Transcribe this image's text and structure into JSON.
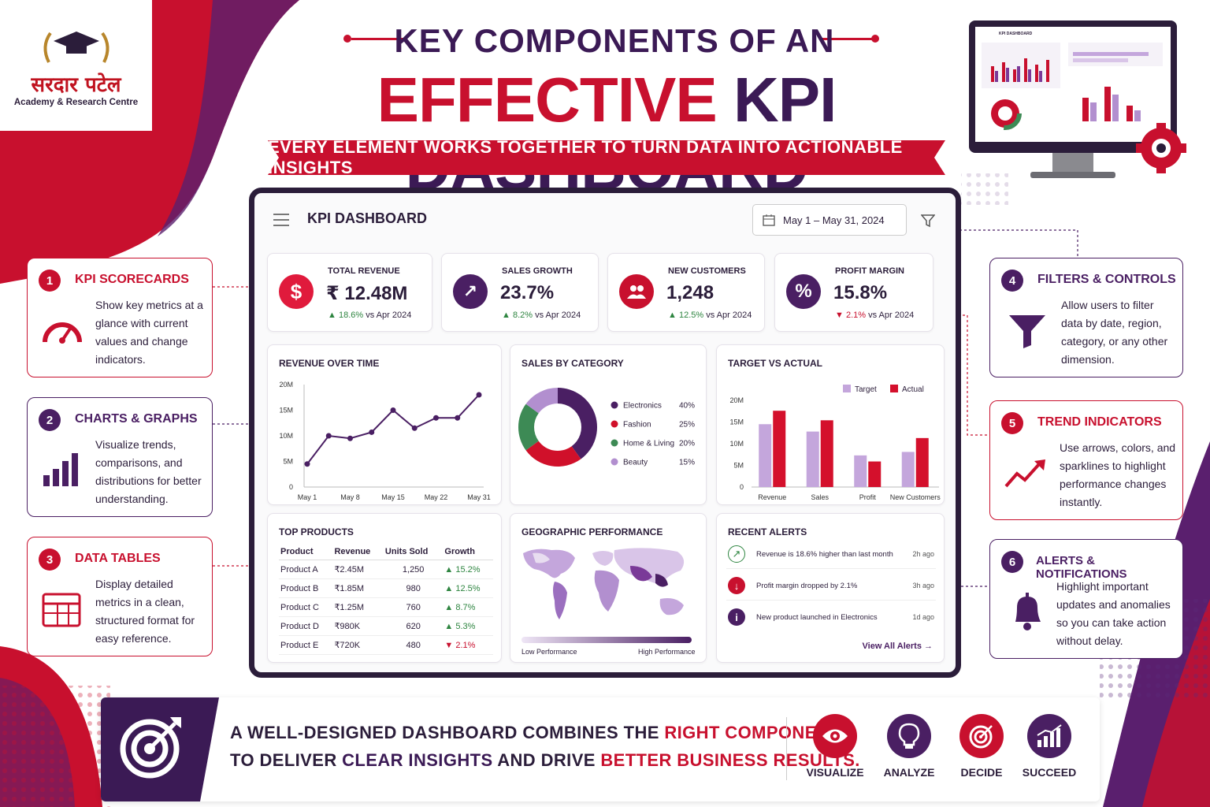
{
  "logo": {
    "hindi": "सरदार पटेल",
    "sub": "Academy & Research Centre"
  },
  "title": {
    "line1": "KEY COMPONENTS OF AN",
    "line2_red": "EFFECTIVE",
    "line2_purple": "KPI DASHBOARD",
    "ribbon": "EVERY ELEMENT WORKS TOGETHER TO TURN DATA INTO ACTIONABLE INSIGHTS"
  },
  "monitor": {
    "title": "KPI DASHBOARD"
  },
  "dashboard": {
    "title": "KPI DASHBOARD",
    "date_range": "May 1 – May 31, 2024",
    "kpis": [
      {
        "label": "TOTAL REVENUE",
        "icon": "$",
        "value": "₹ 12.48M",
        "change": "18.6%",
        "direction": "up",
        "vs": "vs Apr 2024",
        "color": "#e01a3c"
      },
      {
        "label": "SALES GROWTH",
        "icon": "↗",
        "value": "23.7%",
        "change": "8.2%",
        "direction": "up",
        "vs": "vs Apr 2024",
        "color": "#4a1f63"
      },
      {
        "label": "NEW CUSTOMERS",
        "icon": "👥",
        "value": "1,248",
        "change": "12.5%",
        "direction": "up",
        "vs": "vs Apr 2024",
        "color": "#c8102e"
      },
      {
        "label": "PROFIT MARGIN",
        "icon": "%",
        "value": "15.8%",
        "change": "2.1%",
        "direction": "down",
        "vs": "vs Apr 2024",
        "color": "#4a1f63"
      }
    ],
    "revenue_title": "REVENUE OVER TIME",
    "category_title": "SALES BY CATEGORY",
    "target_title": "TARGET VS ACTUAL",
    "products_title": "TOP PRODUCTS",
    "geo_title": "GEOGRAPHIC PERFORMANCE",
    "geo_low": "Low Performance",
    "geo_high": "High Performance",
    "alerts_title": "RECENT ALERTS",
    "alerts": [
      {
        "text": "Revenue is 18.6% higher than last month",
        "time": "2h ago",
        "kind": "up"
      },
      {
        "text": "Profit margin dropped by 2.1%",
        "time": "3h ago",
        "kind": "down"
      },
      {
        "text": "New product launched in Electronics",
        "time": "1d ago",
        "kind": "info"
      }
    ],
    "alerts_link": "View All Alerts →",
    "products": {
      "headers": [
        "Product",
        "Revenue",
        "Units Sold",
        "Growth"
      ],
      "rows": [
        [
          "Product A",
          "₹2.45M",
          "1,250",
          "15.2%",
          "up"
        ],
        [
          "Product B",
          "₹1.85M",
          "980",
          "12.5%",
          "up"
        ],
        [
          "Product C",
          "₹1.25M",
          "760",
          "8.7%",
          "up"
        ],
        [
          "Product D",
          "₹980K",
          "620",
          "5.3%",
          "up"
        ],
        [
          "Product E",
          "₹720K",
          "480",
          "2.1%",
          "down"
        ]
      ]
    }
  },
  "chart_data": [
    {
      "type": "line",
      "title": "REVENUE OVER TIME",
      "x": [
        "May 1",
        "",
        "May 8",
        "",
        "May 15",
        "",
        "May 22",
        "",
        "May 31"
      ],
      "x_ticks": [
        "May 1",
        "May 8",
        "May 15",
        "May 22",
        "May 31"
      ],
      "values": [
        4.5,
        10,
        9.5,
        10.7,
        15,
        11.5,
        13.5,
        13.5,
        18
      ],
      "y_ticks": [
        "20M",
        "15M",
        "10M",
        "5M",
        "0"
      ],
      "ylim": [
        0,
        20
      ],
      "color": "#4a1f63"
    },
    {
      "type": "pie",
      "title": "SALES BY CATEGORY",
      "labels": [
        "Electronics",
        "Fashion",
        "Home & Living",
        "Beauty"
      ],
      "values": [
        40,
        25,
        20,
        15
      ],
      "display": [
        "40%",
        "25%",
        "20%",
        "15%"
      ],
      "colors": [
        "#4a1f63",
        "#d0102a",
        "#3d8a55",
        "#b28fcf"
      ]
    },
    {
      "type": "bar",
      "title": "TARGET VS ACTUAL",
      "categories": [
        "Revenue",
        "Sales",
        "Profit",
        "New Customers"
      ],
      "series": [
        {
          "name": "Target",
          "values": [
            14.5,
            12.8,
            7.3,
            8.1
          ],
          "color": "#c4a6dc"
        },
        {
          "name": "Actual",
          "values": [
            17.6,
            15.4,
            5.9,
            11.3
          ],
          "color": "#d4102c"
        }
      ],
      "y_ticks": [
        "20M",
        "15M",
        "10M",
        "5M",
        "0"
      ],
      "ylim": [
        0,
        20
      ]
    }
  ],
  "sections": [
    {
      "num": "1",
      "title": "KPI SCORECARDS",
      "desc": "Show key metrics at a glance with current values and change indicators.",
      "icon": "speedometer-icon"
    },
    {
      "num": "2",
      "title": "CHARTS & GRAPHS",
      "desc": "Visualize trends, comparisons, and distributions for better understanding.",
      "icon": "bar-chart-icon"
    },
    {
      "num": "3",
      "title": "DATA TABLES",
      "desc": "Display detailed metrics in a clean, structured format for easy reference.",
      "icon": "table-icon"
    },
    {
      "num": "4",
      "title": "FILTERS & CONTROLS",
      "desc": "Allow users to filter data by date, region, category, or any other dimension.",
      "icon": "funnel-icon"
    },
    {
      "num": "5",
      "title": "TREND INDICATORS",
      "desc": "Use arrows, colors, and sparklines to highlight performance changes instantly.",
      "icon": "trend-arrow-icon"
    },
    {
      "num": "6",
      "title": "ALERTS & NOTIFICATIONS",
      "desc": "Highlight important updates and anomalies so you can take action without delay.",
      "icon": "bell-icon"
    }
  ],
  "bottom": {
    "l1a": "A WELL-DESIGNED DASHBOARD COMBINES THE ",
    "l1b": "RIGHT COMPONENTS",
    "l2a": "TO DELIVER ",
    "l2b": "CLEAR INSIGHTS",
    "l2c": " AND DRIVE ",
    "l2d": "BETTER BUSINESS RESULTS.",
    "steps": [
      "VISUALIZE",
      "ANALYZE",
      "DECIDE",
      "SUCCEED"
    ]
  }
}
